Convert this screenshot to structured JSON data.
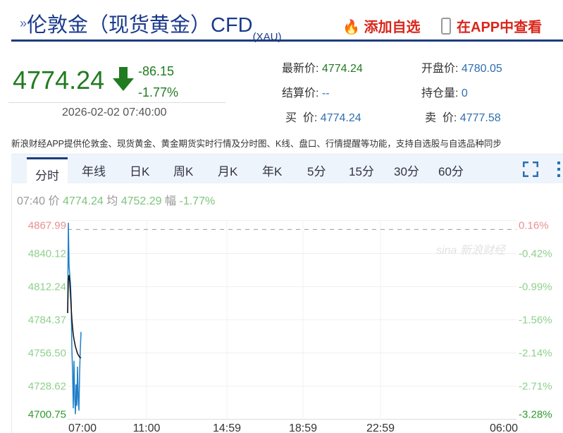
{
  "header": {
    "title": "伦敦金（现货黄金）CFD",
    "title_sub": "(XAU)",
    "add_watchlist": "添加自选",
    "view_in_app": "在APP中查看",
    "chevron_icon": "double-chevron-icon",
    "fire_icon": "fire-icon",
    "phone_icon": "phone-icon"
  },
  "quote": {
    "price": "4774.24",
    "change": "-86.15",
    "change_pct": "-1.77%",
    "datetime": "2026-02-02 07:40:00",
    "direction_icon": "arrow-down-icon",
    "color_down": "#217b20",
    "fields": [
      {
        "label": "最新价:",
        "value": "4774.24"
      },
      {
        "label": "开盘价:",
        "value": "4780.05"
      },
      {
        "label": "结算价:",
        "value": "--"
      },
      {
        "label": "持仓量:",
        "value": "0"
      },
      {
        "label": "买  价:",
        "value": "4774.24"
      },
      {
        "label": "卖  价:",
        "value": "4777.58"
      }
    ]
  },
  "note": "新浪财经APP提供伦敦金、现货黄金、黄金期货实时行情及分时图、K线、盘口、行情提醒等功能，支持自选股与自选品种同步",
  "tabs": [
    "分时",
    "年线",
    "日K",
    "周K",
    "月K",
    "年K",
    "5分",
    "15分",
    "30分",
    "60分"
  ],
  "active_tab": "分时",
  "info": {
    "time": "07:40",
    "price_label": "价",
    "price": "4774.24",
    "avg_label": "均",
    "avg": "4752.29",
    "amp_label": "幅",
    "amp": "-1.77%"
  },
  "chart_data": {
    "type": "line",
    "y_ticks": [
      "4867.99",
      "4840.12",
      "4812.24",
      "4784.37",
      "4756.50",
      "4728.62",
      "4700.75"
    ],
    "y_right_ticks": [
      "0.16%",
      "-0.42%",
      "-0.99%",
      "-1.56%",
      "-2.14%",
      "-2.71%",
      "-3.28%"
    ],
    "x_ticks": [
      "07:00",
      "11:00",
      "14:59",
      "18:59",
      "22:59",
      "06:00"
    ],
    "ylim": [
      4700.75,
      4867.99
    ],
    "prev_close": 4860.39,
    "series": [
      {
        "color": "#1f7fc9",
        "values": [
          4790,
          4866,
          4830,
          4822,
          4815,
          4800,
          4760,
          4740,
          4710,
          4750,
          4720,
          4705,
          4730,
          4712,
          4745,
          4718,
          4708,
          4740,
          4760,
          4774.24
        ]
      },
      {
        "color": "#111111",
        "values": [
          4790,
          4818,
          4822,
          4816,
          4806,
          4795,
          4785,
          4778,
          4772,
          4768,
          4765,
          4762,
          4760,
          4758,
          4756,
          4755,
          4754,
          4753,
          4752.5,
          4752.29
        ]
      }
    ],
    "watermark": "sina 新浪财经"
  }
}
